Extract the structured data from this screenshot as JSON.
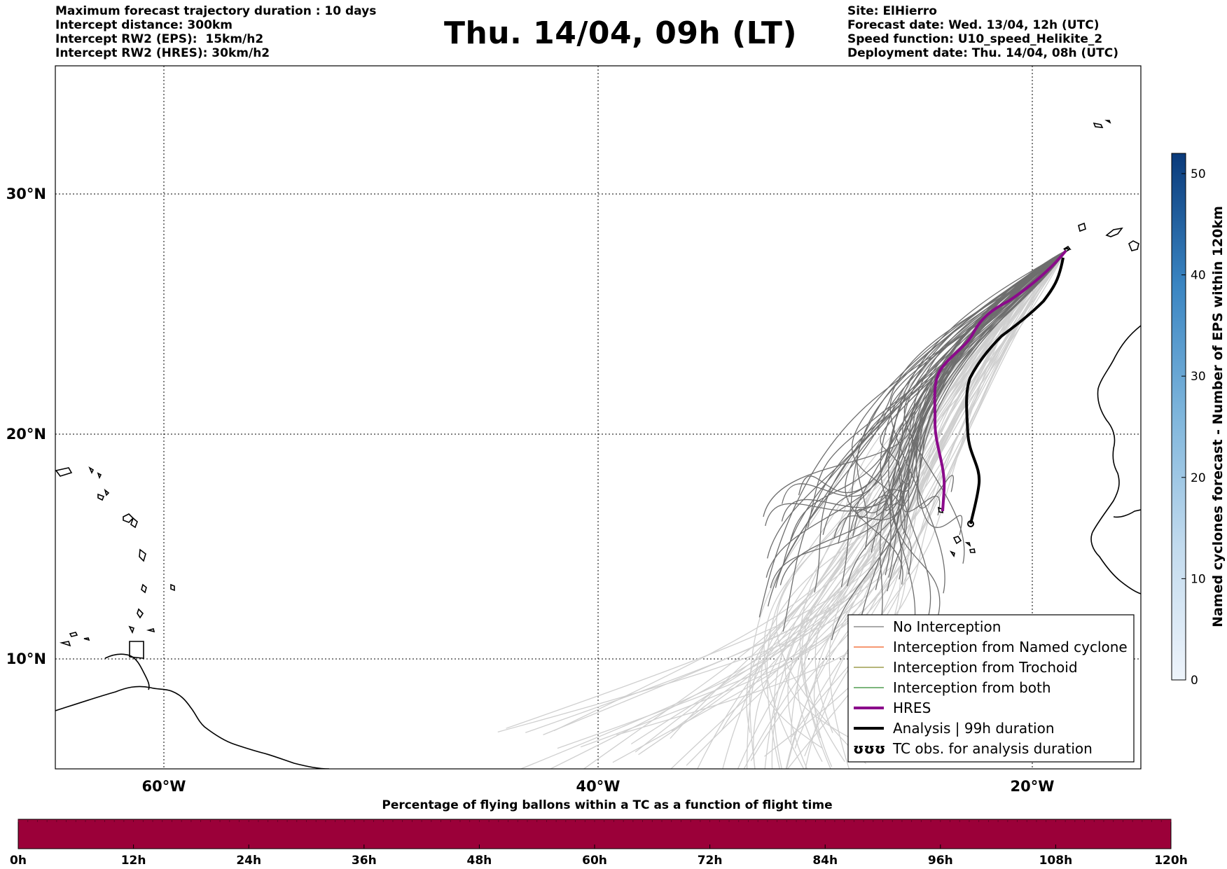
{
  "header": {
    "left_lines": [
      "Maximum forecast trajectory duration : 10 days",
      "Intercept distance: 300km",
      "Intercept RW2 (EPS):  15km/h2",
      "Intercept RW2 (HRES): 30km/h2"
    ],
    "title": "Thu. 14/04, 09h (LT)",
    "right_lines": [
      "Site: ElHierro",
      "Forecast date: Wed. 13/04, 12h (UTC)",
      "Speed function: U10_speed_Helikite_2",
      "Deployment date: Thu. 14/04, 08h (UTC)"
    ]
  },
  "map": {
    "lat_labels": [
      "30°N",
      "20°N",
      "10°N"
    ],
    "lon_labels": [
      "60°W",
      "40°W",
      "20°W"
    ],
    "gridlines": "dotted"
  },
  "legend": {
    "position": "lower-right",
    "items": [
      {
        "label": "No Interception",
        "color": "#777777",
        "style": "thin"
      },
      {
        "label": "Interception from Named cyclone",
        "color": "#f05a1e",
        "style": "thin"
      },
      {
        "label": "Interception from Trochoid",
        "color": "#8a8a2a",
        "style": "thin"
      },
      {
        "label": "Interception from both",
        "color": "#2e8b2e",
        "style": "thin"
      },
      {
        "label": "HRES",
        "color": "#8b0a8b",
        "style": "thick"
      },
      {
        "label": "Analysis | 99h duration",
        "color": "#000000",
        "style": "thick"
      },
      {
        "label": "TC obs. for analysis duration",
        "color": "#000000",
        "style": "symbol",
        "symbol": "ʊʊʊ"
      }
    ]
  },
  "colorbar_vertical": {
    "label": "Named cyclones forecast - Number of EPS within 120km",
    "ticks": [
      "0",
      "10",
      "20",
      "30",
      "40",
      "50"
    ],
    "range": [
      0,
      52
    ],
    "colormap": "blues"
  },
  "colorbar_horizontal": {
    "title": "Percentage of flying ballons within a TC as a function of flight time",
    "ticks": [
      "0h",
      "12h",
      "24h",
      "36h",
      "48h",
      "60h",
      "72h",
      "84h",
      "96h",
      "108h",
      "120h"
    ],
    "fill_color": "#9b0039"
  },
  "colors": {
    "eps_far": "#cfcfcf",
    "eps_near": "#6e6e6e",
    "hres": "#8b0a8b",
    "analysis": "#000000",
    "coast": "#000000"
  }
}
